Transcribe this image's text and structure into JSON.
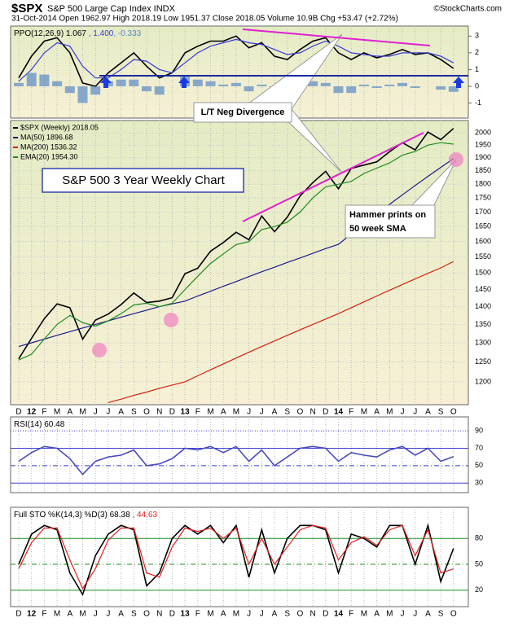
{
  "header": {
    "title": "$SPX",
    "subtitle": "S&P 500 Large Cap Index INDX",
    "source": "©StockCharts.com",
    "info": "31-Oct-2014 Open 1962.97 High 2018.19 Low 1951.37 Close 2018.05 Volume 10.9B Chg +53.47 (+2.72%)"
  },
  "chart_data": [
    {
      "type": "line",
      "name": "ppo",
      "ylim": [
        -1.9,
        3.6
      ],
      "yticks": [
        3,
        2,
        1,
        0,
        -1
      ],
      "series": [
        {
          "name": "PPO(12,26,9) 1.067",
          "color": "#000000",
          "values": [
            0.5,
            1.8,
            2.7,
            2.9,
            2.0,
            0.2,
            0.0,
            0.8,
            1.4,
            2.0,
            1.2,
            0.5,
            0.8,
            2.0,
            2.4,
            2.7,
            2.7,
            3.0,
            2.3,
            2.6,
            1.8,
            1.6,
            2.2,
            2.7,
            2.9,
            2.0,
            1.6,
            2.0,
            1.7,
            1.9,
            2.2,
            1.9,
            2.0,
            1.6,
            1.067
          ]
        },
        {
          "name": ", 1.400",
          "color": "#3b3bd0",
          "values": [
            0.3,
            1.0,
            2.0,
            2.6,
            2.4,
            1.2,
            0.5,
            0.5,
            1.0,
            1.6,
            1.5,
            1.0,
            0.8,
            1.4,
            2.0,
            2.4,
            2.6,
            2.8,
            2.6,
            2.5,
            2.2,
            1.9,
            2.0,
            2.4,
            2.7,
            2.4,
            2.0,
            1.9,
            1.8,
            1.8,
            2.0,
            2.0,
            2.0,
            1.8,
            1.4
          ]
        },
        {
          "name": ", -0.333",
          "color": "#5a8ac6",
          "type": "bar",
          "values": [
            0.2,
            0.8,
            0.7,
            0.3,
            -0.4,
            -1.0,
            -0.5,
            0.3,
            0.4,
            0.4,
            -0.3,
            -0.5,
            0.0,
            0.6,
            0.4,
            0.3,
            0.1,
            0.2,
            -0.3,
            0.1,
            -0.4,
            -0.3,
            0.2,
            0.3,
            0.2,
            -0.4,
            -0.4,
            0.1,
            -0.1,
            0.1,
            0.2,
            -0.1,
            0.0,
            -0.2,
            -0.333
          ]
        }
      ]
    },
    {
      "type": "line",
      "name": "price",
      "log_scale": true,
      "grid": true,
      "categories": [
        "D",
        "12",
        "F",
        "M",
        "A",
        "M",
        "J",
        "J",
        "A",
        "S",
        "O",
        "N",
        "D",
        "13",
        "F",
        "M",
        "A",
        "M",
        "J",
        "J",
        "A",
        "S",
        "O",
        "N",
        "D",
        "14",
        "F",
        "M",
        "A",
        "M",
        "J",
        "J",
        "A",
        "S",
        "O"
      ],
      "ylim": [
        1145,
        2051
      ],
      "yticks": [
        1200,
        1250,
        1300,
        1350,
        1400,
        1450,
        1500,
        1550,
        1600,
        1650,
        1700,
        1750,
        1800,
        1850,
        1900,
        1950,
        2000
      ],
      "annotations": [
        "S&P 500 3 Year Weekly Chart",
        "L/T Neg Divergence",
        "Hammer prints on",
        "50 week SMA"
      ],
      "series": [
        {
          "name": "$SPX (Weekly) 2018.05",
          "color": "#000000",
          "values": [
            1258,
            1312,
            1366,
            1408,
            1397,
            1310,
            1362,
            1379,
            1406,
            1440,
            1412,
            1416,
            1426,
            1498,
            1515,
            1569,
            1597,
            1631,
            1606,
            1686,
            1633,
            1682,
            1757,
            1806,
            1848,
            1783,
            1859,
            1872,
            1884,
            1924,
            1960,
            1931,
            2003,
            1972,
            2018
          ]
        },
        {
          "name": "MA(50) 1896.68",
          "color": "#1a1a8c",
          "values": [
            1290,
            1300,
            1310,
            1320,
            1330,
            1340,
            1350,
            1360,
            1370,
            1380,
            1390,
            1400,
            1408,
            1416,
            1431,
            1445,
            1460,
            1474,
            1489,
            1504,
            1518,
            1533,
            1547,
            1562,
            1577,
            1591,
            1625,
            1659,
            1693,
            1727,
            1761,
            1795,
            1829,
            1863,
            1897
          ]
        },
        {
          "name": "MA(200) 1536.32",
          "color": "#d42010",
          "values": [
            null,
            null,
            null,
            null,
            null,
            null,
            null,
            1150,
            1158,
            1167,
            1175,
            1184,
            1192,
            1200,
            1215,
            1230,
            1245,
            1260,
            1275,
            1290,
            1305,
            1320,
            1335,
            1350,
            1365,
            1380,
            1397,
            1414,
            1431,
            1448,
            1465,
            1482,
            1499,
            1516,
            1536
          ]
        },
        {
          "name": "EMA(20) 1954.30",
          "color": "#1e8c1e",
          "values": [
            1255,
            1270,
            1310,
            1350,
            1375,
            1355,
            1345,
            1360,
            1380,
            1405,
            1410,
            1400,
            1410,
            1450,
            1490,
            1530,
            1560,
            1590,
            1600,
            1640,
            1650,
            1665,
            1700,
            1750,
            1790,
            1800,
            1810,
            1840,
            1860,
            1880,
            1910,
            1925,
            1950,
            1960,
            1954
          ]
        }
      ]
    },
    {
      "type": "line",
      "name": "rsi",
      "ylim": [
        19,
        106
      ],
      "yticks": [
        90,
        70,
        50,
        30
      ],
      "grid_color": "#3b3bd0",
      "series": [
        {
          "name": "RSI(14) 60.48",
          "color": "#4a4ac0",
          "values": [
            55,
            65,
            72,
            70,
            58,
            40,
            55,
            60,
            62,
            68,
            50,
            52,
            58,
            70,
            68,
            72,
            65,
            72,
            55,
            68,
            50,
            60,
            70,
            72,
            70,
            55,
            65,
            62,
            60,
            68,
            72,
            62,
            70,
            55,
            60.48
          ]
        }
      ]
    },
    {
      "type": "line",
      "name": "sto",
      "ylim": [
        1,
        116
      ],
      "yticks": [
        80,
        50,
        20
      ],
      "grid_color": "#1e8c1e",
      "categories": [
        "D",
        "12",
        "F",
        "M",
        "A",
        "M",
        "J",
        "J",
        "A",
        "S",
        "O",
        "N",
        "D",
        "13",
        "F",
        "M",
        "A",
        "M",
        "J",
        "J",
        "A",
        "S",
        "O",
        "N",
        "D",
        "14",
        "F",
        "M",
        "A",
        "M",
        "J",
        "J",
        "A",
        "S",
        "O"
      ],
      "series": [
        {
          "name": "Full STO %K(14,3) %D(3) 68.38",
          "color": "#000000",
          "values": [
            50,
            85,
            95,
            90,
            40,
            15,
            60,
            85,
            95,
            90,
            25,
            40,
            80,
            95,
            85,
            95,
            75,
            95,
            35,
            90,
            40,
            80,
            95,
            95,
            90,
            40,
            85,
            80,
            70,
            95,
            95,
            50,
            95,
            30,
            68.38
          ]
        },
        {
          "name": ", 44.63",
          "color": "#e02020",
          "values": [
            45,
            75,
            92,
            92,
            55,
            22,
            45,
            78,
            92,
            92,
            40,
            35,
            70,
            92,
            88,
            92,
            80,
            92,
            50,
            80,
            50,
            70,
            90,
            95,
            92,
            55,
            75,
            82,
            72,
            90,
            95,
            60,
            90,
            40,
            44.63
          ]
        }
      ]
    }
  ]
}
